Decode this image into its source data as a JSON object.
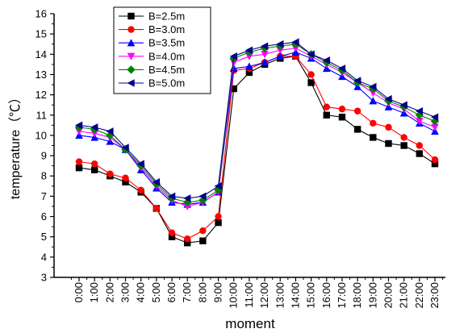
{
  "chart_data": {
    "type": "line",
    "xlabel": "moment",
    "ylabel": "temperature（℃）",
    "ylim": [
      3,
      16
    ],
    "yticks": [
      3,
      4,
      5,
      6,
      7,
      8,
      9,
      10,
      11,
      12,
      13,
      14,
      15,
      16
    ],
    "categories": [
      "0:00",
      "1:00",
      "2:00",
      "3:00",
      "4:00",
      "5:00",
      "6:00",
      "7:00",
      "8:00",
      "9:00",
      "10:00",
      "11:00",
      "12:00",
      "13:00",
      "14:00",
      "15:00",
      "16:00",
      "17:00",
      "18:00",
      "19:00",
      "20:00",
      "21:00",
      "22:00",
      "23:00"
    ],
    "legend_position": "top-left",
    "grid": false,
    "series": [
      {
        "name": "B=2.5m",
        "color": "#000000",
        "marker": "square",
        "values": [
          8.4,
          8.3,
          8.0,
          7.7,
          7.2,
          6.4,
          5.0,
          4.7,
          4.8,
          5.7,
          12.3,
          13.1,
          13.5,
          13.8,
          13.9,
          12.6,
          11.0,
          10.9,
          10.3,
          9.9,
          9.6,
          9.5,
          9.1,
          8.6
        ]
      },
      {
        "name": "B=3.0m",
        "color": "#ff0000",
        "marker": "circle",
        "values": [
          8.7,
          8.6,
          8.1,
          7.9,
          7.3,
          6.4,
          5.2,
          4.9,
          5.3,
          6.0,
          13.2,
          13.3,
          13.6,
          13.9,
          13.9,
          13.0,
          11.4,
          11.3,
          11.2,
          10.6,
          10.4,
          9.9,
          9.5,
          8.8
        ]
      },
      {
        "name": "B=3.5m",
        "color": "#0000ff",
        "marker": "triangle-up",
        "values": [
          10.0,
          9.9,
          9.7,
          9.3,
          8.3,
          7.4,
          6.7,
          6.6,
          6.7,
          7.2,
          13.3,
          13.4,
          13.6,
          13.9,
          14.1,
          13.8,
          13.3,
          12.9,
          12.4,
          11.7,
          11.4,
          11.1,
          10.6,
          10.2
        ]
      },
      {
        "name": "B=4.0m",
        "color": "#ff00ff",
        "marker": "triangle-down",
        "values": [
          10.2,
          10.1,
          9.9,
          9.3,
          8.4,
          7.5,
          6.8,
          6.5,
          6.7,
          7.2,
          13.6,
          13.9,
          14.0,
          14.2,
          14.3,
          13.9,
          13.5,
          13.1,
          12.6,
          12.1,
          11.6,
          11.3,
          10.7,
          10.4
        ]
      },
      {
        "name": "B=4.5m",
        "color": "#008000",
        "marker": "diamond",
        "values": [
          10.4,
          10.3,
          10.0,
          9.3,
          8.5,
          7.6,
          6.9,
          6.7,
          6.8,
          7.3,
          13.8,
          14.1,
          14.3,
          14.4,
          14.5,
          14.0,
          13.6,
          13.2,
          12.6,
          12.3,
          11.7,
          11.4,
          11.0,
          10.7
        ]
      },
      {
        "name": "B=5.0m",
        "color": "#00008b",
        "marker": "triangle-left",
        "values": [
          10.5,
          10.4,
          10.2,
          9.4,
          8.6,
          7.7,
          7.0,
          6.9,
          7.0,
          7.5,
          13.9,
          14.2,
          14.4,
          14.5,
          14.6,
          14.0,
          13.7,
          13.3,
          12.7,
          12.4,
          11.8,
          11.5,
          11.2,
          10.9
        ]
      }
    ]
  }
}
